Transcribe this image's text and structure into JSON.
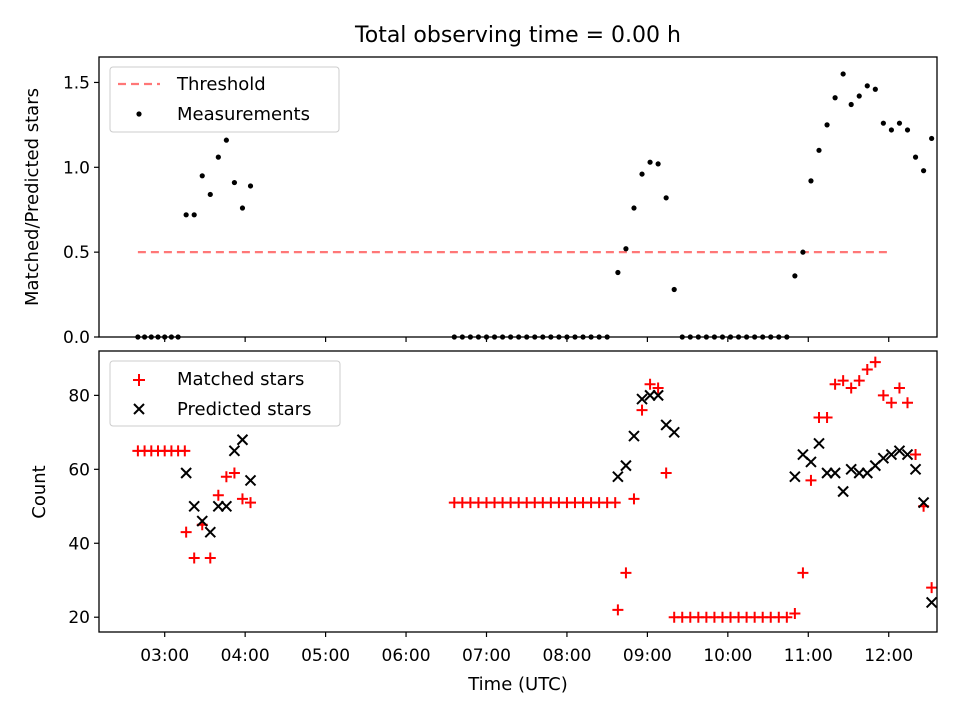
{
  "chart_data": [
    {
      "type": "scatter",
      "title": "Total observing time = 0.00 h",
      "xlabel": "",
      "ylabel": "Matched/Predicted stars",
      "xlim": [
        "02:11",
        "12:36"
      ],
      "ylim": [
        0,
        1.65
      ],
      "yticks": [
        0.0,
        0.5,
        1.0,
        1.5
      ],
      "ytick_labels": [
        "0.0",
        "0.5",
        "1.0",
        "1.5"
      ],
      "legend_position": "upper-left",
      "threshold": {
        "name": "Threshold",
        "value": 0.5,
        "x": [
          "02:40",
          "12:00"
        ],
        "color": "#ff7777"
      },
      "series": [
        {
          "name": "Measurements",
          "color": "#000000",
          "points": [
            [
              "02:40",
              0
            ],
            [
              "02:45",
              0
            ],
            [
              "02:50",
              0
            ],
            [
              "02:55",
              0
            ],
            [
              "03:00",
              0
            ],
            [
              "03:05",
              0
            ],
            [
              "03:10",
              0
            ],
            [
              "03:16",
              0.72
            ],
            [
              "03:22",
              0.72
            ],
            [
              "03:28",
              0.95
            ],
            [
              "03:34",
              0.84
            ],
            [
              "03:40",
              1.06
            ],
            [
              "03:46",
              1.16
            ],
            [
              "03:52",
              0.91
            ],
            [
              "03:58",
              0.76
            ],
            [
              "04:04",
              0.89
            ],
            [
              "06:36",
              0
            ],
            [
              "06:42",
              0
            ],
            [
              "06:48",
              0
            ],
            [
              "06:54",
              0
            ],
            [
              "07:00",
              0
            ],
            [
              "07:06",
              0
            ],
            [
              "07:12",
              0
            ],
            [
              "07:18",
              0
            ],
            [
              "07:24",
              0
            ],
            [
              "07:30",
              0
            ],
            [
              "07:36",
              0
            ],
            [
              "07:42",
              0
            ],
            [
              "07:48",
              0
            ],
            [
              "07:54",
              0
            ],
            [
              "08:00",
              0
            ],
            [
              "08:06",
              0
            ],
            [
              "08:12",
              0
            ],
            [
              "08:18",
              0
            ],
            [
              "08:24",
              0
            ],
            [
              "08:30",
              0
            ],
            [
              "08:38",
              0.38
            ],
            [
              "08:44",
              0.52
            ],
            [
              "08:50",
              0.76
            ],
            [
              "08:56",
              0.96
            ],
            [
              "09:02",
              1.03
            ],
            [
              "09:08",
              1.02
            ],
            [
              "09:14",
              0.82
            ],
            [
              "09:20",
              0.28
            ],
            [
              "09:26",
              0
            ],
            [
              "09:32",
              0
            ],
            [
              "09:38",
              0
            ],
            [
              "09:44",
              0
            ],
            [
              "09:50",
              0
            ],
            [
              "09:56",
              0
            ],
            [
              "10:02",
              0
            ],
            [
              "10:08",
              0
            ],
            [
              "10:14",
              0
            ],
            [
              "10:20",
              0
            ],
            [
              "10:26",
              0
            ],
            [
              "10:32",
              0
            ],
            [
              "10:38",
              0
            ],
            [
              "10:44",
              0
            ],
            [
              "10:50",
              0.36
            ],
            [
              "10:56",
              0.5
            ],
            [
              "11:02",
              0.92
            ],
            [
              "11:08",
              1.1
            ],
            [
              "11:14",
              1.25
            ],
            [
              "11:20",
              1.41
            ],
            [
              "11:26",
              1.55
            ],
            [
              "11:32",
              1.37
            ],
            [
              "11:38",
              1.42
            ],
            [
              "11:44",
              1.48
            ],
            [
              "11:50",
              1.46
            ],
            [
              "11:56",
              1.26
            ],
            [
              "12:02",
              1.22
            ],
            [
              "12:08",
              1.26
            ],
            [
              "12:14",
              1.22
            ],
            [
              "12:20",
              1.06
            ],
            [
              "12:26",
              0.98
            ],
            [
              "12:32",
              1.17
            ]
          ]
        }
      ]
    },
    {
      "type": "scatter",
      "title": "",
      "xlabel": "Time (UTC)",
      "ylabel": "Count",
      "xlim": [
        "02:11",
        "12:36"
      ],
      "ylim": [
        16,
        92
      ],
      "xticks": [
        "03:00",
        "04:00",
        "05:00",
        "06:00",
        "07:00",
        "08:00",
        "09:00",
        "10:00",
        "11:00",
        "12:00"
      ],
      "yticks": [
        20,
        40,
        60,
        80
      ],
      "ytick_labels": [
        "20",
        "40",
        "60",
        "80"
      ],
      "legend_position": "upper-left",
      "series": [
        {
          "name": "Matched stars",
          "marker": "+",
          "color": "#ff0000",
          "points": [
            [
              "02:40",
              65
            ],
            [
              "02:45",
              65
            ],
            [
              "02:50",
              65
            ],
            [
              "02:55",
              65
            ],
            [
              "03:00",
              65
            ],
            [
              "03:05",
              65
            ],
            [
              "03:10",
              65
            ],
            [
              "03:15",
              65
            ],
            [
              "03:16",
              43
            ],
            [
              "03:22",
              36
            ],
            [
              "03:28",
              45
            ],
            [
              "03:34",
              36
            ],
            [
              "03:40",
              53
            ],
            [
              "03:46",
              58
            ],
            [
              "03:52",
              59
            ],
            [
              "03:58",
              52
            ],
            [
              "04:04",
              51
            ],
            [
              "06:36",
              51
            ],
            [
              "06:42",
              51
            ],
            [
              "06:48",
              51
            ],
            [
              "06:54",
              51
            ],
            [
              "07:00",
              51
            ],
            [
              "07:06",
              51
            ],
            [
              "07:12",
              51
            ],
            [
              "07:18",
              51
            ],
            [
              "07:24",
              51
            ],
            [
              "07:30",
              51
            ],
            [
              "07:36",
              51
            ],
            [
              "07:42",
              51
            ],
            [
              "07:48",
              51
            ],
            [
              "07:54",
              51
            ],
            [
              "08:00",
              51
            ],
            [
              "08:06",
              51
            ],
            [
              "08:12",
              51
            ],
            [
              "08:18",
              51
            ],
            [
              "08:24",
              51
            ],
            [
              "08:30",
              51
            ],
            [
              "08:36",
              51
            ],
            [
              "08:38",
              22
            ],
            [
              "08:44",
              32
            ],
            [
              "08:50",
              52
            ],
            [
              "08:56",
              76
            ],
            [
              "09:02",
              83
            ],
            [
              "09:08",
              82
            ],
            [
              "09:14",
              59
            ],
            [
              "09:20",
              20
            ],
            [
              "09:26",
              20
            ],
            [
              "09:32",
              20
            ],
            [
              "09:38",
              20
            ],
            [
              "09:44",
              20
            ],
            [
              "09:50",
              20
            ],
            [
              "09:56",
              20
            ],
            [
              "10:02",
              20
            ],
            [
              "10:08",
              20
            ],
            [
              "10:14",
              20
            ],
            [
              "10:20",
              20
            ],
            [
              "10:26",
              20
            ],
            [
              "10:32",
              20
            ],
            [
              "10:38",
              20
            ],
            [
              "10:44",
              20
            ],
            [
              "10:50",
              21
            ],
            [
              "10:56",
              32
            ],
            [
              "11:02",
              57
            ],
            [
              "11:08",
              74
            ],
            [
              "11:14",
              74
            ],
            [
              "11:20",
              83
            ],
            [
              "11:26",
              84
            ],
            [
              "11:32",
              82
            ],
            [
              "11:38",
              84
            ],
            [
              "11:44",
              87
            ],
            [
              "11:50",
              89
            ],
            [
              "11:56",
              80
            ],
            [
              "12:02",
              78
            ],
            [
              "12:08",
              82
            ],
            [
              "12:14",
              78
            ],
            [
              "12:20",
              64
            ],
            [
              "12:26",
              50
            ],
            [
              "12:32",
              28
            ]
          ]
        },
        {
          "name": "Predicted stars",
          "marker": "x",
          "color": "#000000",
          "points": [
            [
              "03:16",
              59
            ],
            [
              "03:22",
              50
            ],
            [
              "03:28",
              46
            ],
            [
              "03:34",
              43
            ],
            [
              "03:40",
              50
            ],
            [
              "03:46",
              50
            ],
            [
              "03:52",
              65
            ],
            [
              "03:58",
              68
            ],
            [
              "04:04",
              57
            ],
            [
              "08:38",
              58
            ],
            [
              "08:44",
              61
            ],
            [
              "08:50",
              69
            ],
            [
              "08:56",
              79
            ],
            [
              "09:02",
              80
            ],
            [
              "09:08",
              80
            ],
            [
              "09:14",
              72
            ],
            [
              "09:20",
              70
            ],
            [
              "10:50",
              58
            ],
            [
              "10:56",
              64
            ],
            [
              "11:02",
              62
            ],
            [
              "11:08",
              67
            ],
            [
              "11:14",
              59
            ],
            [
              "11:20",
              59
            ],
            [
              "11:26",
              54
            ],
            [
              "11:32",
              60
            ],
            [
              "11:38",
              59
            ],
            [
              "11:44",
              59
            ],
            [
              "11:50",
              61
            ],
            [
              "11:56",
              63
            ],
            [
              "12:02",
              64
            ],
            [
              "12:08",
              65
            ],
            [
              "12:14",
              64
            ],
            [
              "12:20",
              60
            ],
            [
              "12:26",
              51
            ],
            [
              "12:32",
              24
            ]
          ]
        }
      ]
    }
  ]
}
